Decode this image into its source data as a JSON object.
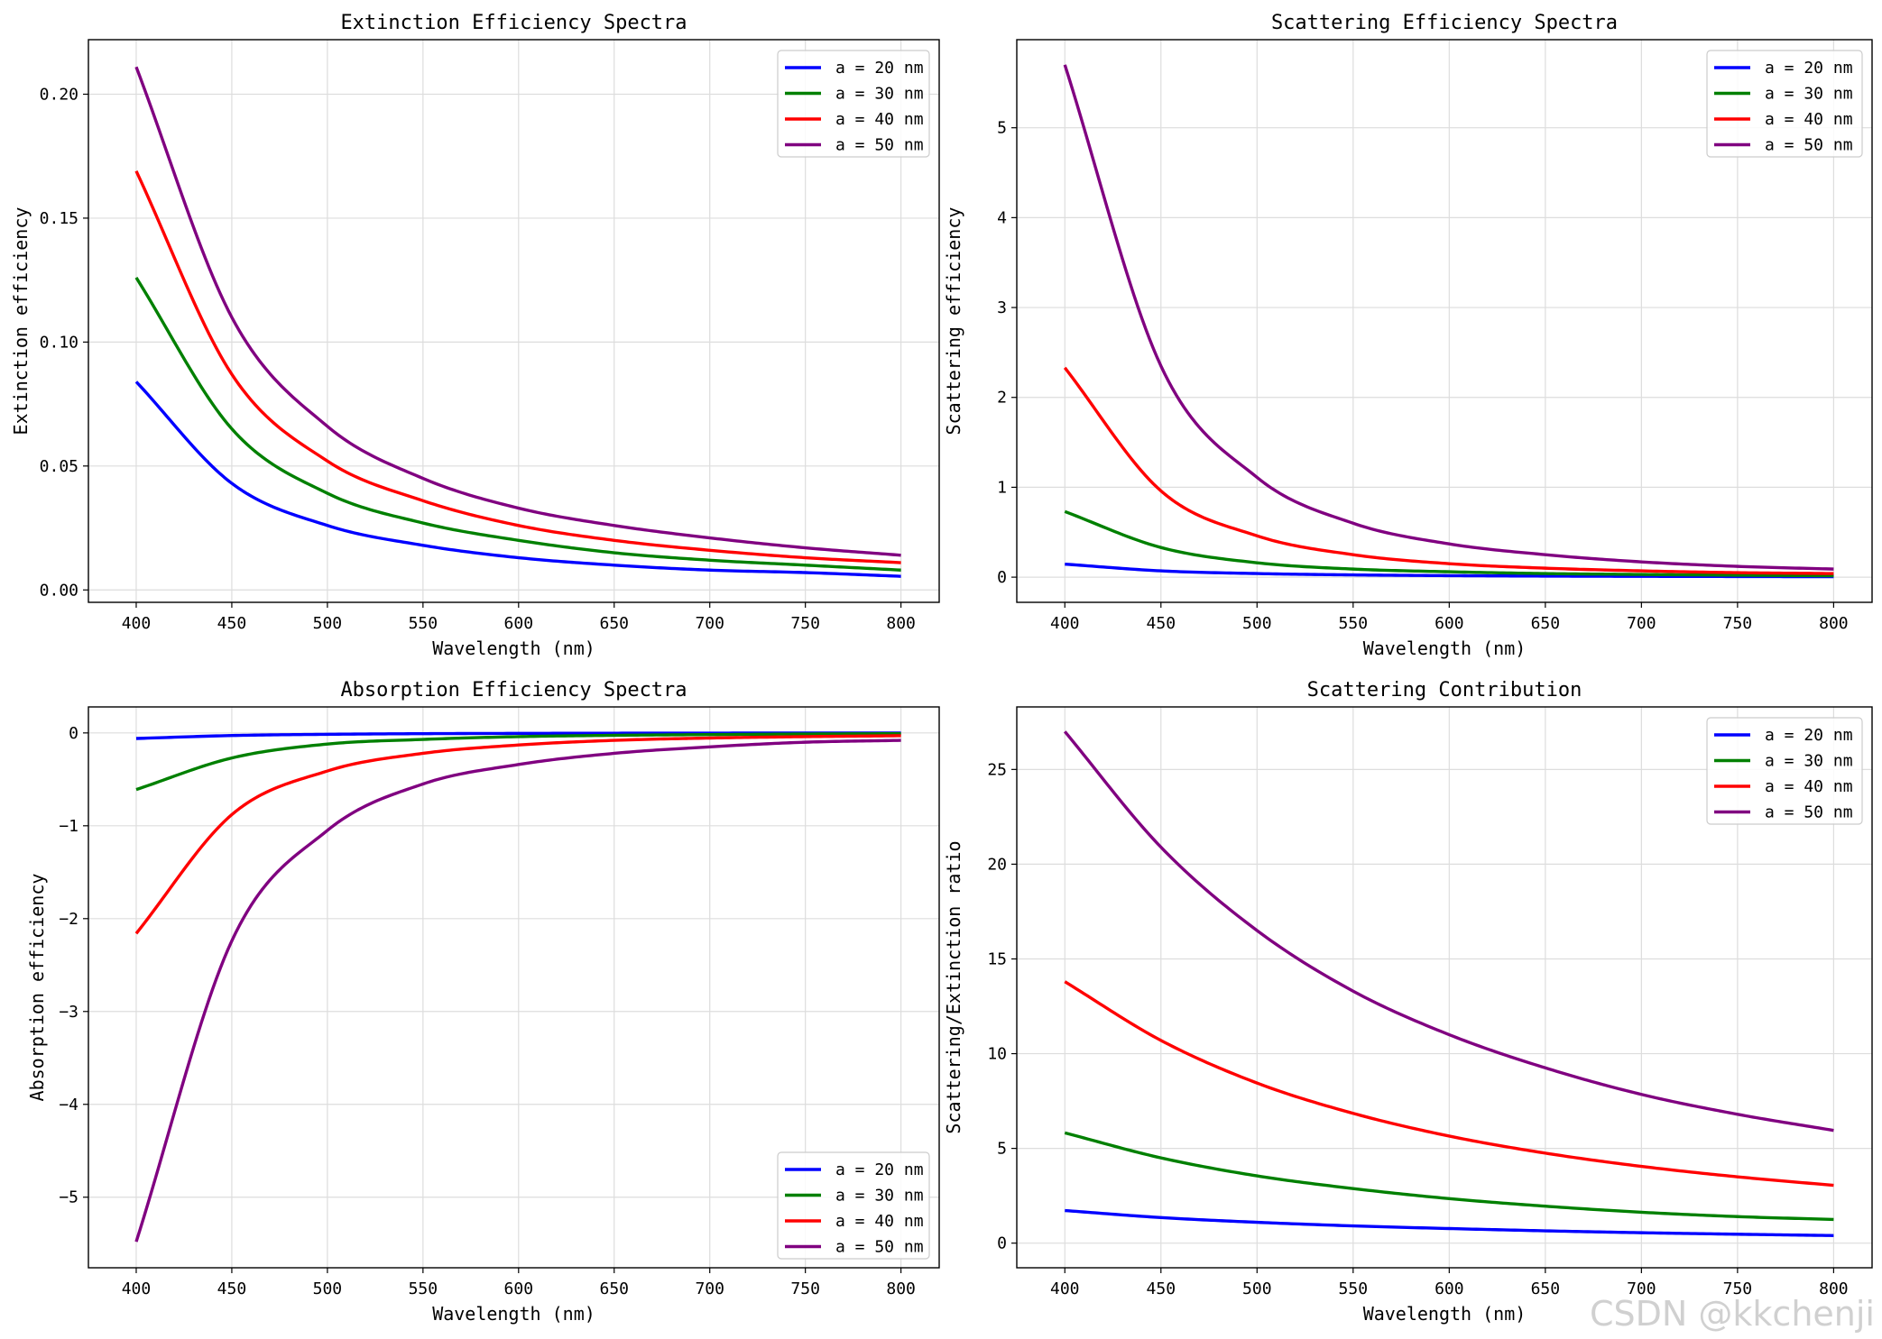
{
  "watermark": "CSDN @kkchenji",
  "series_colors": {
    "a = 20 nm": "#0000ff",
    "a = 30 nm": "#008000",
    "a = 40 nm": "#ff0000",
    "a = 50 nm": "#800080"
  },
  "chart_data": [
    {
      "type": "line",
      "title": "Extinction Efficiency Spectra",
      "xlabel": "Wavelength (nm)",
      "ylabel": "Extinction efficiency",
      "xlim": [
        375,
        820
      ],
      "ylim": [
        -0.005,
        0.222
      ],
      "xticks": [
        400,
        450,
        500,
        550,
        600,
        650,
        700,
        750,
        800
      ],
      "xtick_labels": [
        "400",
        "450",
        "500",
        "550",
        "600",
        "650",
        "700",
        "750",
        "800"
      ],
      "yticks": [
        0,
        0.05,
        0.1,
        0.15,
        0.2
      ],
      "ytick_labels": [
        "0.00",
        "0.05",
        "0.10",
        "0.15",
        "0.20"
      ],
      "grid": true,
      "legend": "upper-right",
      "x": [
        400,
        450,
        500,
        550,
        600,
        650,
        700,
        750,
        800
      ],
      "series": [
        {
          "name": "a = 20 nm",
          "color": "#0000ff",
          "values": [
            0.084,
            0.043,
            0.026,
            0.018,
            0.013,
            0.01,
            0.008,
            0.007,
            0.0055
          ]
        },
        {
          "name": "a = 30 nm",
          "color": "#008000",
          "values": [
            0.126,
            0.065,
            0.039,
            0.027,
            0.02,
            0.015,
            0.012,
            0.01,
            0.008
          ]
        },
        {
          "name": "a = 40 nm",
          "color": "#ff0000",
          "values": [
            0.169,
            0.087,
            0.052,
            0.036,
            0.026,
            0.02,
            0.016,
            0.013,
            0.011
          ]
        },
        {
          "name": "a = 50 nm",
          "color": "#800080",
          "values": [
            0.211,
            0.11,
            0.066,
            0.045,
            0.033,
            0.026,
            0.021,
            0.017,
            0.014
          ]
        }
      ]
    },
    {
      "type": "line",
      "title": "Scattering Efficiency Spectra",
      "xlabel": "Wavelength (nm)",
      "ylabel": "Scattering efficiency",
      "xlim": [
        375,
        820
      ],
      "ylim": [
        -0.28,
        5.98
      ],
      "xticks": [
        400,
        450,
        500,
        550,
        600,
        650,
        700,
        750,
        800
      ],
      "xtick_labels": [
        "400",
        "450",
        "500",
        "550",
        "600",
        "650",
        "700",
        "750",
        "800"
      ],
      "yticks": [
        0,
        1,
        2,
        3,
        4,
        5
      ],
      "ytick_labels": [
        "0",
        "1",
        "2",
        "3",
        "4",
        "5"
      ],
      "grid": true,
      "legend": "upper-right",
      "x": [
        400,
        450,
        500,
        550,
        600,
        650,
        700,
        750,
        800
      ],
      "series": [
        {
          "name": "a = 20 nm",
          "color": "#0000ff",
          "values": [
            0.145,
            0.07,
            0.04,
            0.025,
            0.017,
            0.012,
            0.009,
            0.007,
            0.005
          ]
        },
        {
          "name": "a = 30 nm",
          "color": "#008000",
          "values": [
            0.73,
            0.33,
            0.16,
            0.09,
            0.06,
            0.04,
            0.03,
            0.022,
            0.016
          ]
        },
        {
          "name": "a = 40 nm",
          "color": "#ff0000",
          "values": [
            2.33,
            0.96,
            0.46,
            0.25,
            0.15,
            0.1,
            0.07,
            0.05,
            0.04
          ]
        },
        {
          "name": "a = 50 nm",
          "color": "#800080",
          "values": [
            5.7,
            2.35,
            1.11,
            0.6,
            0.37,
            0.25,
            0.17,
            0.12,
            0.09
          ]
        }
      ]
    },
    {
      "type": "line",
      "title": "Absorption Efficiency Spectra",
      "xlabel": "Wavelength (nm)",
      "ylabel": "Absorption efficiency",
      "xlim": [
        375,
        820
      ],
      "ylim": [
        -5.76,
        0.28
      ],
      "xticks": [
        400,
        450,
        500,
        550,
        600,
        650,
        700,
        750,
        800
      ],
      "xtick_labels": [
        "400",
        "450",
        "500",
        "550",
        "600",
        "650",
        "700",
        "750",
        "800"
      ],
      "yticks": [
        0,
        -1,
        -2,
        -3,
        -4,
        -5
      ],
      "ytick_labels": [
        "0",
        "−1",
        "−2",
        "−3",
        "−4",
        "−5"
      ],
      "grid": true,
      "legend": "lower-right",
      "x": [
        400,
        450,
        500,
        550,
        600,
        650,
        700,
        750,
        800
      ],
      "series": [
        {
          "name": "a = 20 nm",
          "color": "#0000ff",
          "values": [
            -0.06,
            -0.028,
            -0.015,
            -0.008,
            -0.005,
            -0.003,
            -0.002,
            -0.001,
            -0.0005
          ]
        },
        {
          "name": "a = 30 nm",
          "color": "#008000",
          "values": [
            -0.61,
            -0.27,
            -0.12,
            -0.07,
            -0.04,
            -0.026,
            -0.018,
            -0.012,
            -0.008
          ]
        },
        {
          "name": "a = 40 nm",
          "color": "#ff0000",
          "values": [
            -2.16,
            -0.88,
            -0.41,
            -0.22,
            -0.13,
            -0.08,
            -0.055,
            -0.04,
            -0.03
          ]
        },
        {
          "name": "a = 50 nm",
          "color": "#800080",
          "values": [
            -5.48,
            -2.24,
            -1.05,
            -0.55,
            -0.34,
            -0.22,
            -0.15,
            -0.1,
            -0.08
          ]
        }
      ]
    },
    {
      "type": "line",
      "title": "Scattering Contribution",
      "xlabel": "Wavelength (nm)",
      "ylabel": "Scattering/Extinction ratio",
      "xlim": [
        375,
        820
      ],
      "ylim": [
        -1.3,
        28.3
      ],
      "xticks": [
        400,
        450,
        500,
        550,
        600,
        650,
        700,
        750,
        800
      ],
      "xtick_labels": [
        "400",
        "450",
        "500",
        "550",
        "600",
        "650",
        "700",
        "750",
        "800"
      ],
      "yticks": [
        0,
        5,
        10,
        15,
        20,
        25
      ],
      "ytick_labels": [
        "0",
        "5",
        "10",
        "15",
        "20",
        "25"
      ],
      "grid": true,
      "legend": "upper-right",
      "x": [
        400,
        450,
        500,
        550,
        600,
        650,
        700,
        750,
        800
      ],
      "series": [
        {
          "name": "a = 20 nm",
          "color": "#0000ff",
          "values": [
            1.72,
            1.35,
            1.1,
            0.91,
            0.77,
            0.65,
            0.55,
            0.47,
            0.4
          ]
        },
        {
          "name": "a = 30 nm",
          "color": "#008000",
          "values": [
            5.82,
            4.5,
            3.55,
            2.88,
            2.35,
            1.95,
            1.63,
            1.4,
            1.25
          ]
        },
        {
          "name": "a = 40 nm",
          "color": "#ff0000",
          "values": [
            13.8,
            10.7,
            8.45,
            6.85,
            5.65,
            4.75,
            4.05,
            3.5,
            3.05
          ]
        },
        {
          "name": "a = 50 nm",
          "color": "#800080",
          "values": [
            27.0,
            20.9,
            16.5,
            13.3,
            11.0,
            9.25,
            7.85,
            6.8,
            5.95
          ]
        }
      ]
    }
  ]
}
